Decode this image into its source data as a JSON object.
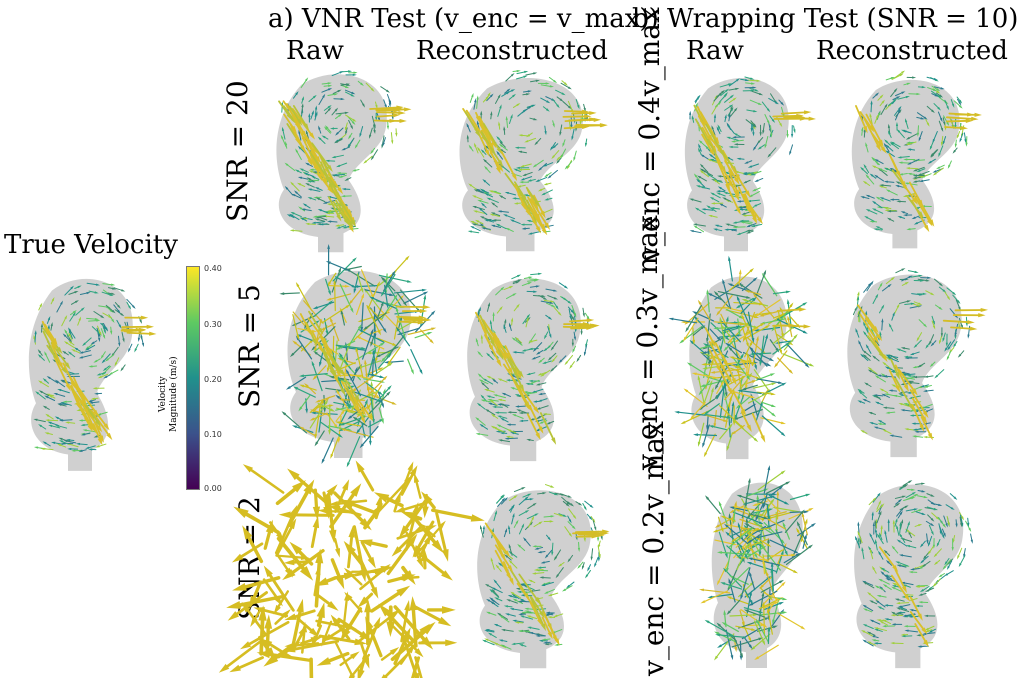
{
  "figure": {
    "true_velocity_label": "True Velocity",
    "section_a": {
      "title": "a) VNR Test (v_enc = v_max)",
      "col_raw": "Raw",
      "col_reconstructed": "Reconstructed",
      "rows": [
        "SNR = 20",
        "SNR = 5",
        "SNR = 2"
      ]
    },
    "section_b": {
      "title": "b) Wrapping Test (SNR = 10)",
      "col_raw": "Raw",
      "col_reconstructed": "Reconstructed",
      "rows": [
        "v_enc = 0.4v_max",
        "v_enc = 0.3v_max",
        "v_enc = 0.2v_max"
      ]
    },
    "colorbar": {
      "title_line1": "Velocity",
      "title_line2": "Magnitude (m/s)",
      "ticks": [
        "0.40",
        "0.30",
        "0.20",
        "0.10",
        "0.00"
      ],
      "colors": [
        "#fde725",
        "#5ec962",
        "#21918c",
        "#3b528b",
        "#440154"
      ]
    }
  }
}
